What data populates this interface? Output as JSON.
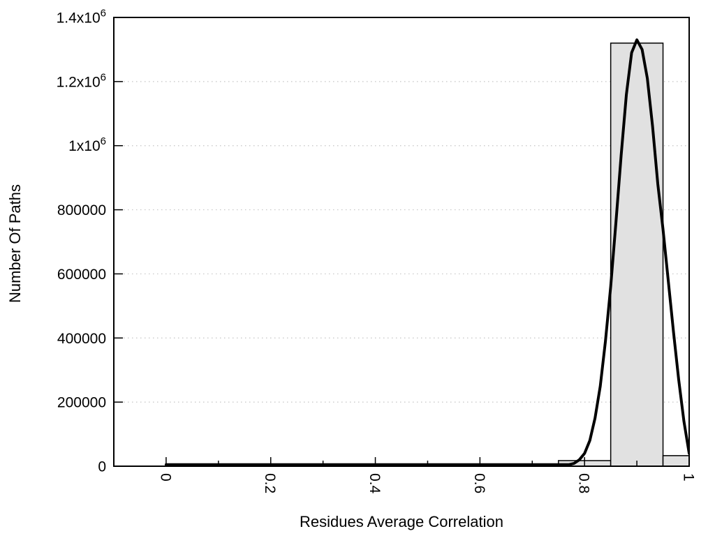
{
  "chart_data": {
    "type": "bar",
    "subtype": "histogram-with-density-curve",
    "title": "",
    "xlabel": "Residues Average Correlation",
    "ylabel": "Number Of Paths",
    "xlim": [
      -0.1,
      1.0
    ],
    "ylim": [
      0,
      1400000
    ],
    "grid": "horizontal dotted gridlines at labeled y ticks",
    "legend_position": "none",
    "x_major_ticks": [
      {
        "v": 0,
        "label": "0"
      },
      {
        "v": 0.2,
        "label": "0.2"
      },
      {
        "v": 0.4,
        "label": "0.4"
      },
      {
        "v": 0.6,
        "label": "0.6"
      },
      {
        "v": 0.8,
        "label": "0.8"
      },
      {
        "v": 1.0,
        "label": "1"
      }
    ],
    "x_minor_ticks": [
      0.1,
      0.3,
      0.5,
      0.7,
      0.9
    ],
    "x_tick_label_rotation_deg": 90,
    "y_ticks": [
      {
        "v": 0,
        "label": "0"
      },
      {
        "v": 200000,
        "label": "200000"
      },
      {
        "v": 400000,
        "label": "400000"
      },
      {
        "v": 600000,
        "label": "600000"
      },
      {
        "v": 800000,
        "label": "800000"
      },
      {
        "v": 1000000,
        "label": "1x10^6"
      },
      {
        "v": 1200000,
        "label": "1.2x10^6"
      },
      {
        "v": 1400000,
        "label": "1.4x10^6"
      }
    ],
    "bars": [
      {
        "x0": 0.75,
        "x1": 0.85,
        "count": 17500
      },
      {
        "x0": 0.85,
        "x1": 0.95,
        "count": 1320000
      },
      {
        "x0": 0.95,
        "x1": 1.0,
        "count": 33000
      }
    ],
    "curve_points": [
      [
        0.0,
        0
      ],
      [
        0.1,
        0
      ],
      [
        0.2,
        0
      ],
      [
        0.3,
        0
      ],
      [
        0.4,
        0
      ],
      [
        0.5,
        0
      ],
      [
        0.6,
        0
      ],
      [
        0.65,
        0
      ],
      [
        0.7,
        0
      ],
      [
        0.72,
        100
      ],
      [
        0.74,
        500
      ],
      [
        0.75,
        1000
      ],
      [
        0.76,
        2000
      ],
      [
        0.77,
        4500
      ],
      [
        0.78,
        9000
      ],
      [
        0.79,
        20000
      ],
      [
        0.8,
        40000
      ],
      [
        0.81,
        80000
      ],
      [
        0.82,
        150000
      ],
      [
        0.83,
        250000
      ],
      [
        0.84,
        390000
      ],
      [
        0.85,
        560000
      ],
      [
        0.86,
        760000
      ],
      [
        0.87,
        970000
      ],
      [
        0.88,
        1160000
      ],
      [
        0.89,
        1290000
      ],
      [
        0.9,
        1330000
      ],
      [
        0.91,
        1300000
      ],
      [
        0.92,
        1210000
      ],
      [
        0.93,
        1060000
      ],
      [
        0.94,
        880000
      ],
      [
        0.95,
        740000
      ],
      [
        0.96,
        580000
      ],
      [
        0.97,
        420000
      ],
      [
        0.98,
        270000
      ],
      [
        0.99,
        140000
      ],
      [
        1.0,
        40000
      ]
    ],
    "colors": {
      "background": "#ffffff",
      "bar_fill": "#e1e1e1",
      "bar_border": "#000000",
      "curve": "#000000",
      "grid": "#c4c4c4",
      "axis": "#000000",
      "text": "#000000"
    }
  }
}
